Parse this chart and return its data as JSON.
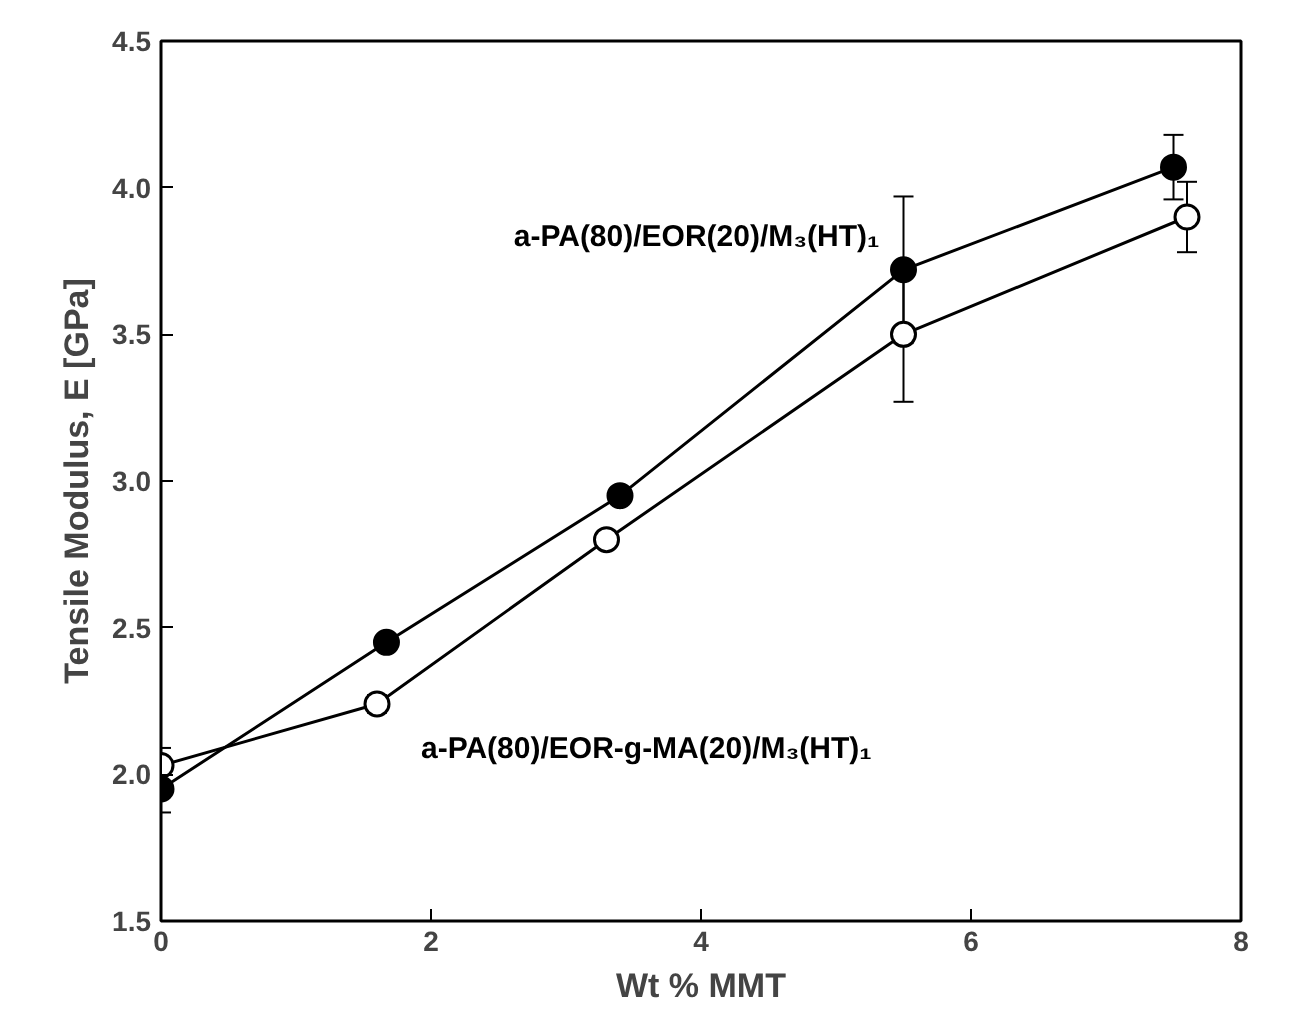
{
  "chart_data": {
    "type": "line",
    "xlabel": "Wt % MMT",
    "ylabel": "Tensile Modulus, E [GPa]",
    "xlim": [
      0,
      8
    ],
    "xticks": [
      0,
      2,
      4,
      6,
      8
    ],
    "ylim": [
      1.5,
      4.5
    ],
    "yticks": [
      1.5,
      {
        "value": 2,
        "label": "2.0"
      },
      2.5,
      {
        "value": 3,
        "label": "3.0"
      },
      3.5,
      {
        "value": 4,
        "label": "4.0"
      },
      4.5
    ],
    "marker": "circle",
    "line_style": "solid",
    "grid": false,
    "series": [
      {
        "name": "a-PA(80)/EOR(20)/M₃(HT)₁",
        "color": "#000000",
        "x": [
          0,
          1.67,
          3.4,
          5.5,
          7.5
        ],
        "values": [
          1.95,
          2.45,
          2.95,
          3.72,
          4.07
        ],
        "errors": [
          0.08,
          null,
          null,
          0.25,
          0.11
        ]
      },
      {
        "name": "a-PA(80)/EOR-g-MA(20)/M₃(HT)₁",
        "color": "#000000",
        "x": [
          0,
          1.6,
          3.3,
          5.5,
          7.6
        ],
        "values": [
          2.03,
          2.24,
          2.8,
          3.5,
          3.9
        ],
        "errors": [
          0.06,
          0.03,
          null,
          0.23,
          0.12
        ]
      }
    ]
  }
}
